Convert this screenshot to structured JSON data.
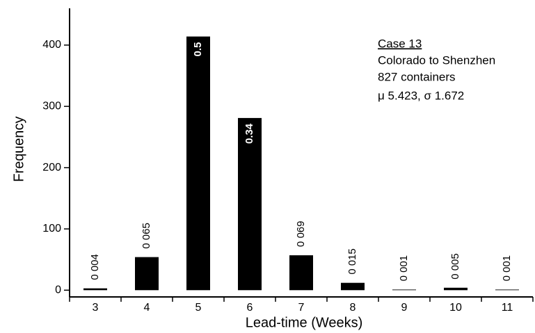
{
  "chart_data": {
    "type": "bar",
    "x_label": "Lead-time (Weeks)",
    "y_label": "Frequency",
    "categories": [
      "3",
      "4",
      "5",
      "6",
      "7",
      "8",
      "9",
      "10",
      "11"
    ],
    "values": [
      3,
      54,
      414,
      281,
      57,
      12,
      1,
      4,
      1
    ],
    "value_labels": [
      "0 004",
      "0 065",
      "0.5",
      "0.34",
      "0 069",
      "0 015",
      "0 001",
      "0 005",
      "0 001"
    ],
    "color": "#000000",
    "ylim": [
      -11,
      460
    ],
    "yticks": [
      0,
      100,
      200,
      300,
      400
    ],
    "annotation": {
      "title": "Case 13",
      "lines": [
        "Colorado to Shenzhen",
        "827 containers",
        "μ  5.423, σ  1.672"
      ]
    }
  }
}
